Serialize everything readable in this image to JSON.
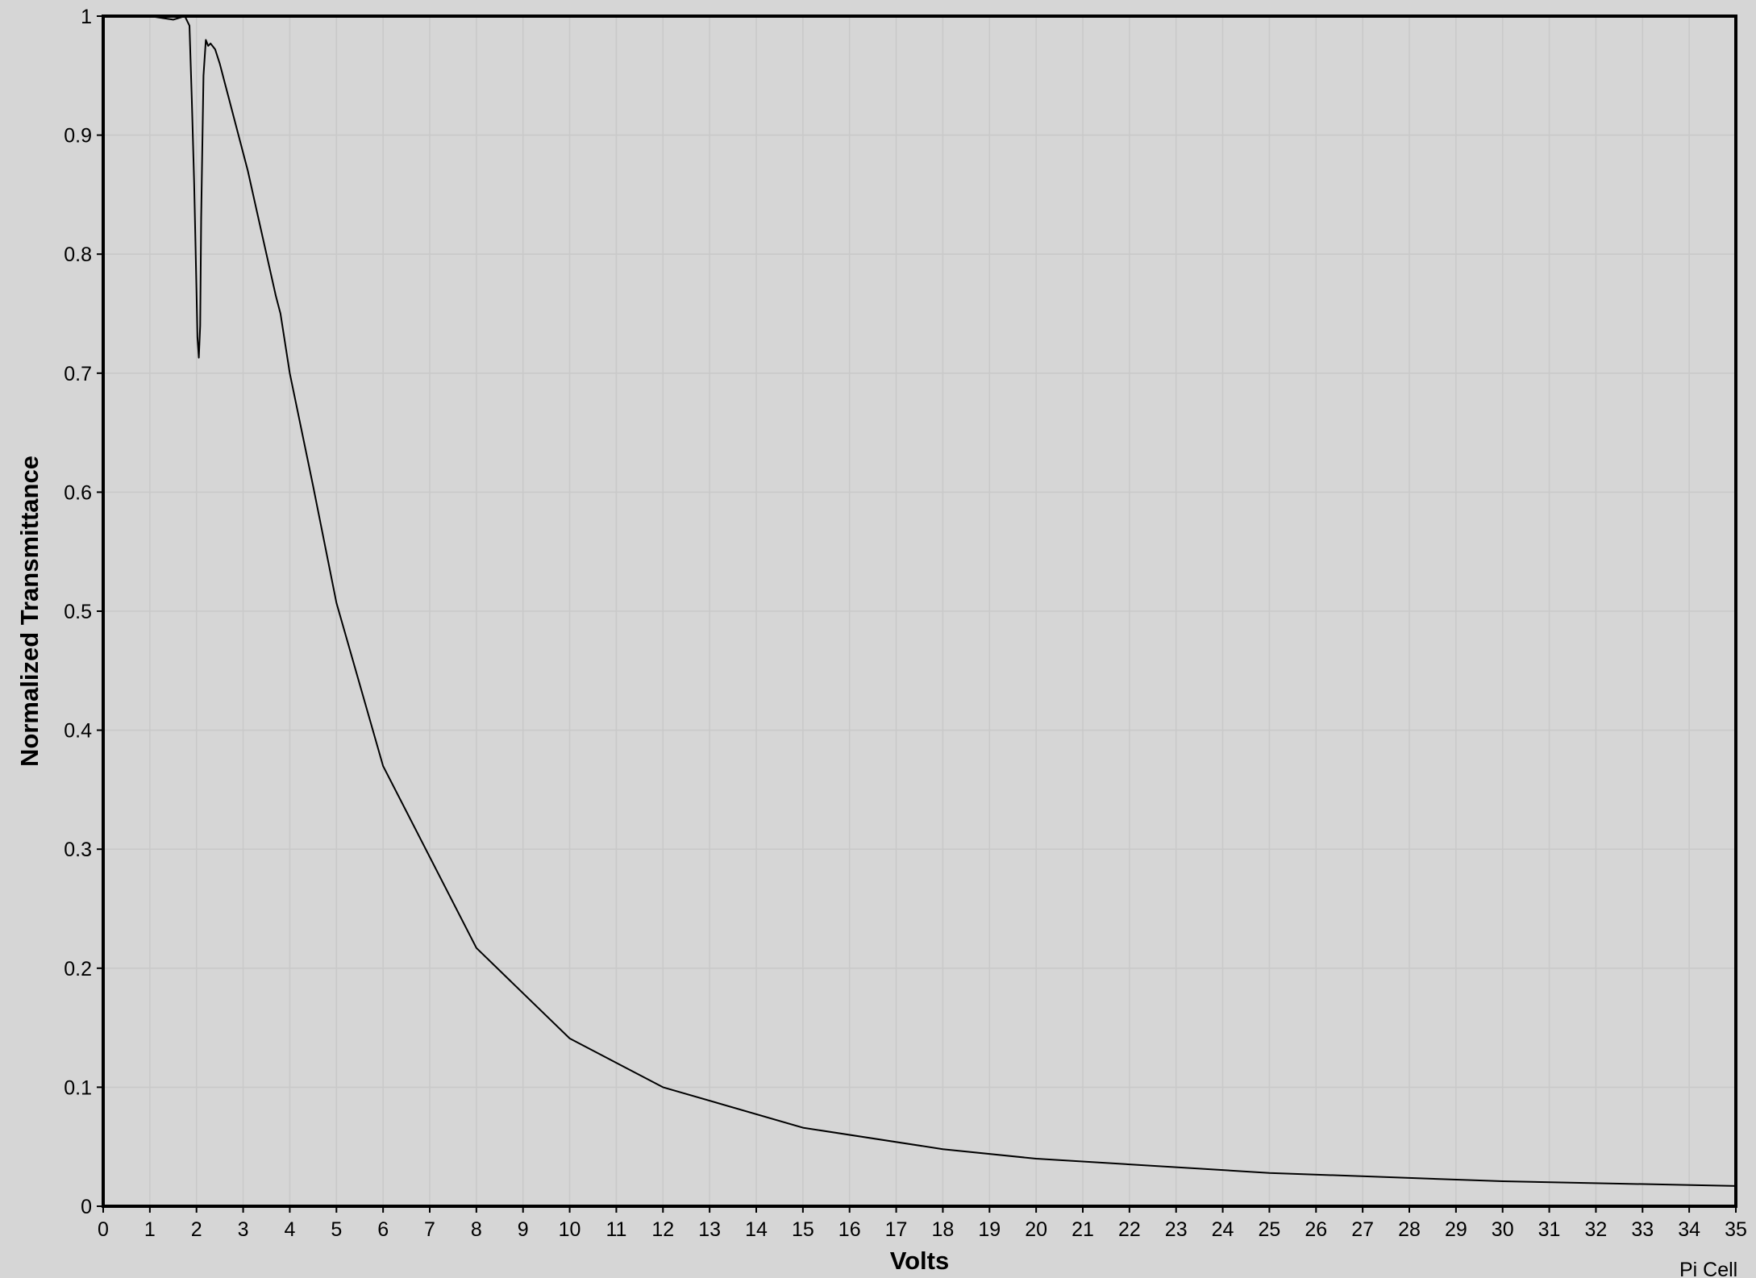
{
  "chart_data": {
    "type": "line",
    "title": "",
    "xlabel": "Volts",
    "ylabel": "Normalized Transmittance",
    "xlim": [
      0,
      35
    ],
    "ylim": [
      0,
      1
    ],
    "x_ticks": [
      0,
      1,
      2,
      3,
      4,
      5,
      6,
      7,
      8,
      9,
      10,
      11,
      12,
      13,
      14,
      15,
      16,
      17,
      18,
      19,
      20,
      21,
      22,
      23,
      24,
      25,
      26,
      27,
      28,
      29,
      30,
      31,
      32,
      33,
      34,
      35
    ],
    "y_ticks": [
      0,
      0.1,
      0.2,
      0.3,
      0.4,
      0.5,
      0.6,
      0.7,
      0.8,
      0.9,
      1
    ],
    "grid": true,
    "legend": "none",
    "credit": "Pi Cell",
    "colors": {
      "background": "#d6d6d6",
      "grid": "#c9c9c9",
      "line": "#000000",
      "frame": "#000000"
    },
    "series": [
      {
        "x": [
          1.0,
          1.5,
          1.75,
          1.8,
          1.85,
          1.9,
          1.95,
          2.0,
          2.02,
          2.05,
          2.08,
          2.1,
          2.15,
          2.2,
          2.25,
          2.3,
          2.4,
          2.5,
          2.6,
          2.7,
          2.8,
          2.9,
          3.0,
          3.1,
          3.3,
          3.5,
          3.7,
          3.8,
          4.0,
          4.5,
          5.0,
          6.0,
          8.0,
          10.0,
          12.0,
          15.0,
          18.0,
          20.0,
          25.0,
          30.0,
          35.0
        ],
        "y": [
          1.0,
          0.997,
          1.0,
          0.996,
          0.992,
          0.93,
          0.86,
          0.77,
          0.73,
          0.713,
          0.74,
          0.83,
          0.95,
          0.98,
          0.975,
          0.977,
          0.972,
          0.96,
          0.945,
          0.93,
          0.915,
          0.9,
          0.885,
          0.87,
          0.835,
          0.8,
          0.765,
          0.75,
          0.7,
          0.605,
          0.507,
          0.37,
          0.217,
          0.141,
          0.1,
          0.066,
          0.048,
          0.04,
          0.028,
          0.021,
          0.017
        ]
      }
    ]
  }
}
